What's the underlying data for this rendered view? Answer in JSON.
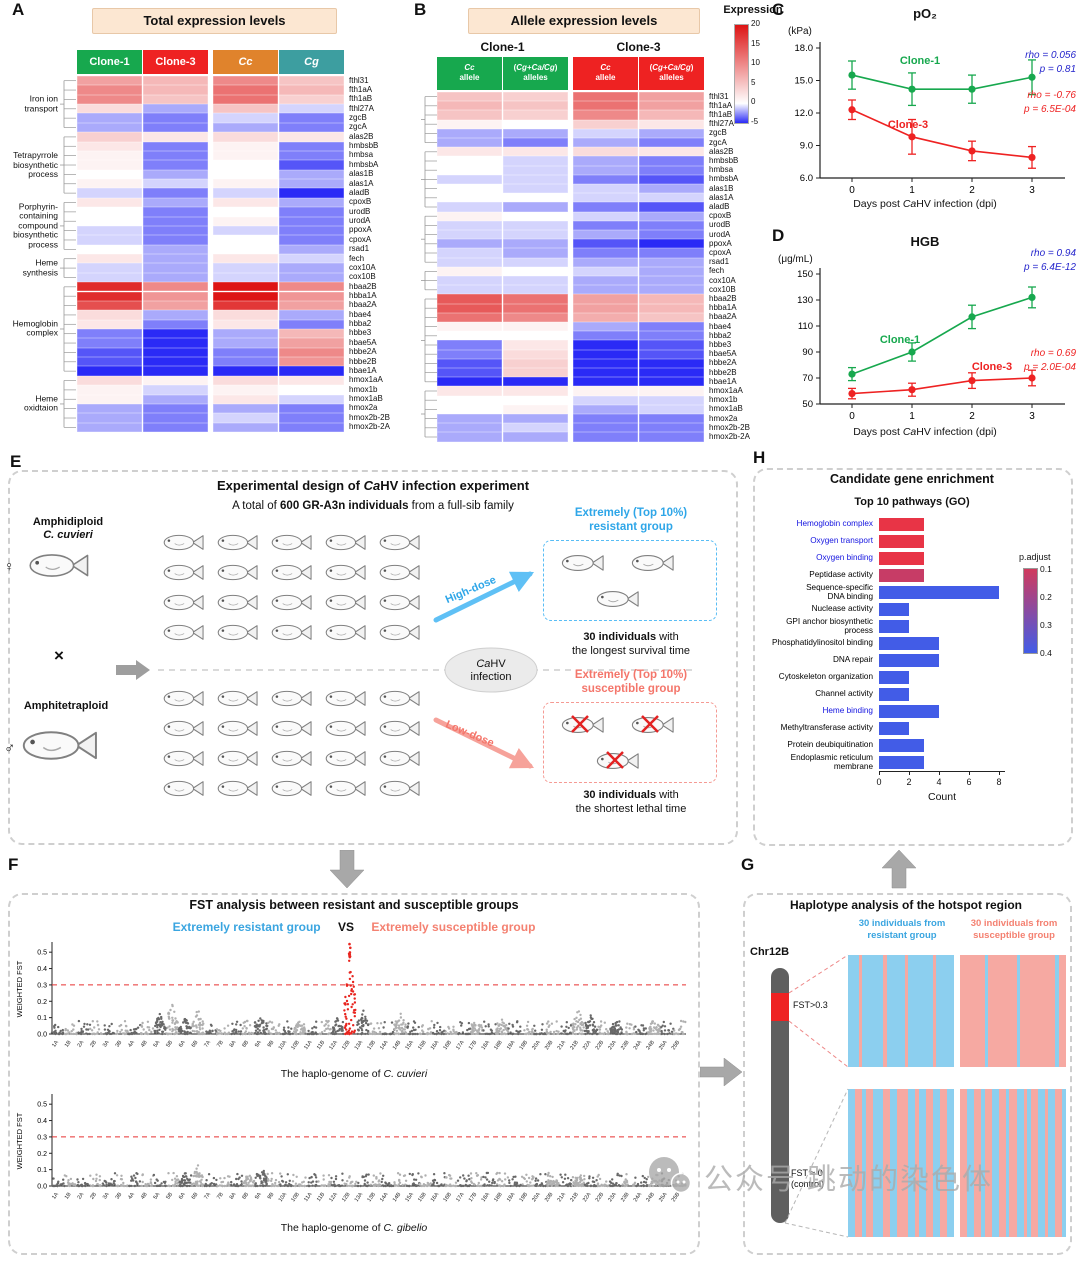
{
  "panel_labels": {
    "A": "A",
    "B": "B",
    "C": "C",
    "D": "D",
    "E": "E",
    "F": "F",
    "G": "G",
    "H": "H"
  },
  "colorbar": {
    "title": "Expression",
    "ticks": [
      20,
      15,
      10,
      5,
      0,
      -5
    ]
  },
  "heatmap_genes": [
    "fthl31",
    "fth1aA",
    "fth1aB",
    "fthl27A",
    "zgcB",
    "zgcA",
    "alas2B",
    "hmbsbB",
    "hmbsa",
    "hmbsbA",
    "alas1B",
    "alas1A",
    "aladB",
    "cpoxB",
    "urodB",
    "urodA",
    "ppoxA",
    "cpoxA",
    "rsad1",
    "fech",
    "cox10A",
    "cox10B",
    "hbaa2B",
    "hbba1A",
    "hbaa2A",
    "hbae4",
    "hbba2",
    "hbbe3",
    "hbae5A",
    "hbbe2A",
    "hbbe2B",
    "hbae1A",
    "hmox1aA",
    "hmox1b",
    "hmox1aB",
    "hmox2a",
    "hmox2b-2B",
    "hmox2b-2A"
  ],
  "heatmap_categories": [
    {
      "name": "Iron ion\ntransport",
      "start": 0,
      "end": 5
    },
    {
      "name": "Tetrapyrrole\nbiosynthetic\nprocess",
      "start": 6,
      "end": 12
    },
    {
      "name": "Porphyrin-\ncontaining\ncompound\nbiosynthetic\nprocess",
      "start": 13,
      "end": 18
    },
    {
      "name": "Heme\nsynthesis",
      "start": 19,
      "end": 21
    },
    {
      "name": "Hemoglobin\ncomplex",
      "start": 22,
      "end": 31
    },
    {
      "name": "Heme\noxidtaion",
      "start": 32,
      "end": 37
    }
  ],
  "chart_data": [
    {
      "id": "A",
      "type": "heatmap",
      "title": "Total expression levels",
      "columns": [
        {
          "label": "Clone-1",
          "bg": "#17a84e"
        },
        {
          "label": "Clone-3",
          "bg": "#ee2222"
        },
        {
          "label": "*Cc*",
          "bg": "#e0832c"
        },
        {
          "label": "*Cg*",
          "bg": "#3d9ea0"
        }
      ],
      "scale": {
        "min": -5,
        "max": 20
      },
      "values": [
        [
          8,
          6,
          10,
          5
        ],
        [
          10,
          6,
          12,
          6
        ],
        [
          10,
          5,
          12,
          4
        ],
        [
          3,
          -2,
          5,
          -1
        ],
        [
          -2,
          -3,
          -1,
          -3
        ],
        [
          -2,
          -3,
          -2,
          -3
        ],
        [
          4,
          2,
          3,
          2
        ],
        [
          2,
          -3,
          1,
          -3
        ],
        [
          1,
          -3,
          1,
          -3
        ],
        [
          1,
          -3,
          0,
          -4
        ],
        [
          0,
          -2,
          0,
          -2
        ],
        [
          1,
          -1,
          1,
          -2
        ],
        [
          -1,
          -3,
          -1,
          -5
        ],
        [
          2,
          -2,
          2,
          -2
        ],
        [
          0,
          -3,
          0,
          -3
        ],
        [
          0,
          -3,
          1,
          -3
        ],
        [
          -1,
          -3,
          -1,
          -3
        ],
        [
          -1,
          -3,
          0,
          -3
        ],
        [
          0,
          -2,
          0,
          -2
        ],
        [
          2,
          -2,
          2,
          -1
        ],
        [
          -1,
          -2,
          -1,
          -2
        ],
        [
          -1,
          -2,
          -1,
          -2
        ],
        [
          18,
          10,
          20,
          10
        ],
        [
          18,
          9,
          20,
          9
        ],
        [
          15,
          8,
          17,
          8
        ],
        [
          3,
          -2,
          3,
          -2
        ],
        [
          2,
          -3,
          2,
          -3
        ],
        [
          -3,
          -5,
          -2,
          6
        ],
        [
          -3,
          -5,
          -2,
          8
        ],
        [
          -4,
          -5,
          -3,
          10
        ],
        [
          -4,
          -5,
          -3,
          9
        ],
        [
          -5,
          -5,
          -5,
          -5
        ],
        [
          3,
          1,
          3,
          2
        ],
        [
          1,
          -1,
          1,
          0
        ],
        [
          1,
          -2,
          2,
          -1
        ],
        [
          -2,
          -3,
          -2,
          -3
        ],
        [
          -2,
          -3,
          -1,
          -3
        ],
        [
          -2,
          -3,
          -2,
          -3
        ]
      ]
    },
    {
      "id": "B",
      "type": "heatmap",
      "title": "Allele expression levels",
      "groups": [
        "Clone-1",
        "Clone-3"
      ],
      "columns": [
        {
          "top": "*Cc*",
          "bottom": "allele",
          "bg": "#17a84e"
        },
        {
          "top": "(*Cg+Ca/Cg*)",
          "bottom": "alleles",
          "bg": "#17a84e"
        },
        {
          "top": "*Cc*",
          "bottom": "allele",
          "bg": "#ee2222"
        },
        {
          "top": "(*Cg+Ca/Cg*)",
          "bottom": "alleles",
          "bg": "#ee2222"
        }
      ],
      "values": [
        [
          5,
          4,
          12,
          8
        ],
        [
          6,
          5,
          12,
          8
        ],
        [
          5,
          4,
          10,
          6
        ],
        [
          1,
          0,
          4,
          2
        ],
        [
          -2,
          -2,
          -1,
          -2
        ],
        [
          -2,
          -3,
          -2,
          -3
        ],
        [
          2,
          2,
          3,
          2
        ],
        [
          0,
          -1,
          -2,
          -3
        ],
        [
          0,
          -1,
          -2,
          -3
        ],
        [
          -1,
          -1,
          -3,
          -4
        ],
        [
          0,
          -1,
          -1,
          -2
        ],
        [
          0,
          0,
          -1,
          -1
        ],
        [
          -1,
          -2,
          -3,
          -4
        ],
        [
          1,
          0,
          -1,
          -2
        ],
        [
          -1,
          -1,
          -3,
          -3
        ],
        [
          -1,
          -1,
          -2,
          -3
        ],
        [
          -2,
          -2,
          -4,
          -5
        ],
        [
          -1,
          -2,
          -3,
          -3
        ],
        [
          -1,
          -1,
          -2,
          -2
        ],
        [
          1,
          0,
          -1,
          -2
        ],
        [
          -1,
          -1,
          -2,
          -2
        ],
        [
          -1,
          -1,
          -2,
          -2
        ],
        [
          14,
          12,
          8,
          6
        ],
        [
          14,
          12,
          8,
          6
        ],
        [
          12,
          10,
          7,
          5
        ],
        [
          1,
          1,
          -2,
          -3
        ],
        [
          0,
          0,
          -3,
          -3
        ],
        [
          -3,
          2,
          -5,
          -4
        ],
        [
          -3,
          3,
          -5,
          -4
        ],
        [
          -4,
          4,
          -5,
          -5
        ],
        [
          -4,
          4,
          -5,
          -5
        ],
        [
          -5,
          -5,
          -5,
          -5
        ],
        [
          2,
          2,
          1,
          1
        ],
        [
          0,
          0,
          -1,
          -1
        ],
        [
          0,
          1,
          -2,
          -1
        ],
        [
          -2,
          -2,
          -3,
          -3
        ],
        [
          -2,
          -1,
          -3,
          -3
        ],
        [
          -2,
          -2,
          -3,
          -3
        ]
      ]
    },
    {
      "id": "C",
      "type": "line",
      "title": "pO₂",
      "unit": "(kPa)",
      "xlabel": "Days post *Ca*HV infection (dpi)",
      "x": [
        0,
        1,
        2,
        3
      ],
      "ylim": [
        6,
        18
      ],
      "yticks": [
        6,
        9,
        12,
        15,
        18
      ],
      "ytick_decimals": 1,
      "series": [
        {
          "name": "Clone-1",
          "color": "#17a84e",
          "values": [
            15.5,
            14.2,
            14.2,
            15.3
          ],
          "err": [
            1.3,
            1.5,
            1.3,
            1.6
          ],
          "ann": [
            "rho = 0.056",
            "p = 0.81"
          ],
          "ann_color": "#2525cc"
        },
        {
          "name": "Clone-3",
          "color": "#ee2222",
          "values": [
            12.3,
            9.8,
            8.5,
            7.9
          ],
          "err": [
            0.9,
            1.6,
            0.9,
            1.0
          ],
          "ann": [
            "rho = -0.76",
            "p = 6.5E-04"
          ],
          "ann_color": "#ee2222"
        }
      ]
    },
    {
      "id": "D",
      "type": "line",
      "title": "HGB",
      "unit": "(μg/mL)",
      "xlabel": "Days post *Ca*HV infection (dpi)",
      "x": [
        0,
        1,
        2,
        3
      ],
      "ylim": [
        50,
        150
      ],
      "yticks": [
        50,
        70,
        90,
        110,
        130,
        150
      ],
      "ytick_decimals": 0,
      "series": [
        {
          "name": "Clone-1",
          "color": "#17a84e",
          "values": [
            73,
            90,
            117,
            132
          ],
          "err": [
            5,
            7,
            9,
            8
          ],
          "ann": [
            "rho = 0.94",
            "p = 6.4E-12"
          ],
          "ann_color": "#2525cc"
        },
        {
          "name": "Clone-3",
          "color": "#ee2222",
          "values": [
            58,
            61,
            68,
            70
          ],
          "err": [
            4,
            5,
            6,
            6
          ],
          "ann": [
            "rho = 0.69",
            "p = 2.0E-04"
          ],
          "ann_color": "#ee2222"
        }
      ]
    },
    {
      "id": "H",
      "type": "bar",
      "title": "Candidate gene enrichment",
      "subtitle": "Top 10 pathways (GO)",
      "xlabel": "Count",
      "xticks": [
        0,
        2,
        4,
        6,
        8
      ],
      "xlim": [
        0,
        8.3
      ],
      "legend": {
        "title": "p.adjust",
        "ticks": [
          "0.1",
          "0.2",
          "0.3",
          "0.4"
        ],
        "min": 0.1,
        "max": 0.4
      },
      "bars": [
        {
          "label": "Hemoglobin complex",
          "count": 3,
          "padjust": 0.05,
          "label_blue": true
        },
        {
          "label": "Oxygen transport",
          "count": 3,
          "padjust": 0.05,
          "label_blue": true
        },
        {
          "label": "Oxygen binding",
          "count": 3,
          "padjust": 0.05,
          "label_blue": true
        },
        {
          "label": "Peptidase activity",
          "count": 3,
          "padjust": 0.12,
          "label_blue": false
        },
        {
          "label": "Sequence-specific\nDNA binding",
          "count": 8,
          "padjust": 0.4,
          "label_blue": false
        },
        {
          "label": "Nuclease activity",
          "count": 2,
          "padjust": 0.4,
          "label_blue": false
        },
        {
          "label": "GPI anchor biosynthetic\nprocess",
          "count": 2,
          "padjust": 0.4,
          "label_blue": false
        },
        {
          "label": "Phosphatidylinositol binding",
          "count": 4,
          "padjust": 0.4,
          "label_blue": false
        },
        {
          "label": "DNA repair",
          "count": 4,
          "padjust": 0.4,
          "label_blue": false
        },
        {
          "label": "Cytoskeleton organization",
          "count": 2,
          "padjust": 0.4,
          "label_blue": false
        },
        {
          "label": "Channel activity",
          "count": 2,
          "padjust": 0.4,
          "label_blue": false
        },
        {
          "label": "Heme binding",
          "count": 4,
          "padjust": 0.4,
          "label_blue": true
        },
        {
          "label": "Methyltransferase activity",
          "count": 2,
          "padjust": 0.4,
          "label_blue": false
        },
        {
          "label": "Protein deubiquitination",
          "count": 3,
          "padjust": 0.4,
          "label_blue": false
        },
        {
          "label": "Endoplasmic reticulum\nmembrane",
          "count": 3,
          "padjust": 0.4,
          "label_blue": false
        }
      ]
    },
    {
      "id": "F1",
      "type": "manhattan",
      "ylabel": "WEIGHTED FST",
      "xlabel": "The haplo-genome of *C. cuvieri*",
      "ylim": [
        0,
        0.55
      ],
      "yticks": [
        "0.0",
        "0.1",
        "0.2",
        "0.3",
        "0.4",
        "0.5"
      ],
      "threshold": 0.3,
      "chromosomes": [
        "1A",
        "1B",
        "2A",
        "2B",
        "3A",
        "3B",
        "4A",
        "4B",
        "5A",
        "5B",
        "6A",
        "6B",
        "7A",
        "7B",
        "8A",
        "8B",
        "9A",
        "9B",
        "10A",
        "10B",
        "11A",
        "11B",
        "12A",
        "12B",
        "13A",
        "13B",
        "14A",
        "14B",
        "15A",
        "15B",
        "16A",
        "16B",
        "17A",
        "17B",
        "18A",
        "18B",
        "19A",
        "19B",
        "20A",
        "20B",
        "21A",
        "21B",
        "22A",
        "22B",
        "23A",
        "23B",
        "24A",
        "24B",
        "25A",
        "25B"
      ],
      "peaks": {
        "5A": 0.13,
        "5B": 0.23,
        "6A": 0.1,
        "6B": 0.17,
        "9A": 0.12,
        "10B": 0.08,
        "12A": 0.1,
        "12B": 0.55,
        "13A": 0.16,
        "14B": 0.13,
        "17B": 0.1,
        "18B": 0.09,
        "21B": 0.17,
        "22A": 0.12,
        "23A": 0.08,
        "24B": 0.1
      },
      "highlight": "12B",
      "highlight_color": "#e8251f"
    },
    {
      "id": "F2",
      "type": "manhattan",
      "ylabel": "WEIGHTED FST",
      "xlabel": "The haplo-genome of *C. gibelio*",
      "ylim": [
        0,
        0.55
      ],
      "yticks": [
        "0.0",
        "0.1",
        "0.2",
        "0.3",
        "0.4",
        "0.5"
      ],
      "threshold": 0.3,
      "peaks": {
        "6A": 0.08,
        "6B": 0.13,
        "8B": 0.08,
        "9A": 0.13,
        "20B": 0.06,
        "21B": 0.07
      }
    },
    {
      "id": "G",
      "type": "haplotype",
      "title": "Haplotype analysis of the hotspot region",
      "groups": [
        {
          "label": "30 individuals from\nresistant group",
          "color": "#3aa5e0"
        },
        {
          "label": "30 individuals from\nsusceptible group",
          "color": "#f48171"
        }
      ],
      "chromosome": "Chr12B",
      "band_label": "FST>0.3",
      "control_label": "FST ≈ 0\n(control)",
      "cell_colors": {
        "B": "#8ccfef",
        "P": "#f6a9a2"
      },
      "patterns": {
        "res_hot": "BBBPBBBBBBPBBBBBPBBBBBBBPBBBBB",
        "sus_hot": "PPPPPPPBPPPPPPPPBPPPPPPPPPPBPP",
        "res_ctrl": "BBPPBPPBBBPPBBPPPBBPBBPPBBPPBB",
        "sus_ctrl": "PPBBPPBPPBBPPBPPBBPBPPBBPBBPPB"
      }
    }
  ],
  "panelE": {
    "title": "Experimental design of *Ca*HV infection experiment",
    "subtitle": "A total of **600 GR-A3n individuals** from a full-sib family",
    "mother": "Amphidiploid\n*C. cuvieri*",
    "mother_symbol": "♀",
    "cross": "×",
    "father": "Amphitetraploid",
    "father_symbol": "♂",
    "infection": "*Ca*HV\ninfection",
    "high_label": "High-dose",
    "low_label": "Low-dose",
    "resistant_header": "Extremely (Top 10%)\nresistant group",
    "resistant_caption": "**30 individuals** with\nthe longest survival time",
    "susceptible_header": "Extremely (Top 10%)\nsusceptible group",
    "susceptible_caption": "**30 individuals** with\nthe shortest lethal time"
  },
  "panelF": {
    "title": "FST analysis between resistant and susceptible groups",
    "legend_left": "Extremely resistant group",
    "legend_vs": "VS",
    "legend_right": "Extremely susceptible group"
  },
  "watermark": {
    "text1": "公众号",
    "text2": "跳动的染色体"
  }
}
